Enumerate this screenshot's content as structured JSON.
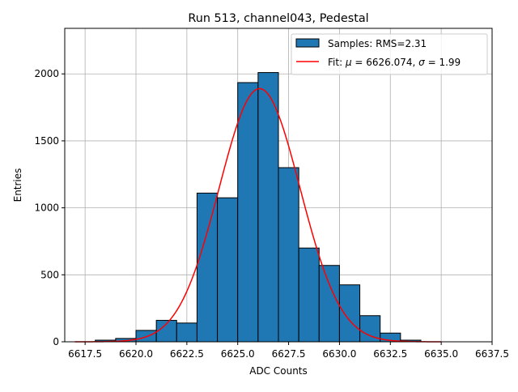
{
  "chart_data": {
    "type": "bar",
    "title": "Run 513, channel043, Pedestal",
    "xlabel": "ADC Counts",
    "ylabel": "Entries",
    "xlim": [
      6616.5,
      6637.5
    ],
    "ylim": [
      0,
      2340
    ],
    "grid": true,
    "legend_position": "top-right",
    "x_ticks": [
      6617.5,
      6620.0,
      6622.5,
      6625.0,
      6627.5,
      6630.0,
      6632.5,
      6635.0,
      6637.5
    ],
    "x_tick_labels": [
      "6617.5",
      "6620.0",
      "6622.5",
      "6625.0",
      "6627.5",
      "6630.0",
      "6632.5",
      "6635.0",
      "6637.5"
    ],
    "y_ticks": [
      0,
      500,
      1000,
      1500,
      2000
    ],
    "y_tick_labels": [
      "0",
      "500",
      "1000",
      "1500",
      "2000"
    ],
    "bins": [
      {
        "x0": 6618,
        "x1": 6619,
        "value": 12
      },
      {
        "x0": 6619,
        "x1": 6620,
        "value": 25
      },
      {
        "x0": 6620,
        "x1": 6621,
        "value": 85
      },
      {
        "x0": 6621,
        "x1": 6622,
        "value": 160
      },
      {
        "x0": 6622,
        "x1": 6623,
        "value": 140
      },
      {
        "x0": 6623,
        "x1": 6624,
        "value": 1110
      },
      {
        "x0": 6624,
        "x1": 6625,
        "value": 1075
      },
      {
        "x0": 6625,
        "x1": 6626,
        "value": 1935
      },
      {
        "x0": 6626,
        "x1": 6627,
        "value": 2010
      },
      {
        "x0": 6627,
        "x1": 6628,
        "value": 1300
      },
      {
        "x0": 6628,
        "x1": 6629,
        "value": 700
      },
      {
        "x0": 6629,
        "x1": 6630,
        "value": 570
      },
      {
        "x0": 6630,
        "x1": 6631,
        "value": 425
      },
      {
        "x0": 6631,
        "x1": 6632,
        "value": 195
      },
      {
        "x0": 6632,
        "x1": 6633,
        "value": 65
      },
      {
        "x0": 6633,
        "x1": 6634,
        "value": 12
      }
    ],
    "fit": {
      "type": "gaussian",
      "mu": 6626.074,
      "sigma": 1.99,
      "amplitude": 1890,
      "x_range": [
        6617.0,
        6635.0
      ]
    },
    "series": [
      {
        "name": "Samples: RMS=2.31",
        "kind": "histogram",
        "color": "#1f77b4"
      },
      {
        "name_prefix": "Fit: ",
        "mu_symbol": "μ",
        "eq1": " = 6626.074, ",
        "sigma_symbol": "σ",
        "eq2": " = 1.99",
        "kind": "line",
        "color": "#ff0000"
      }
    ]
  }
}
